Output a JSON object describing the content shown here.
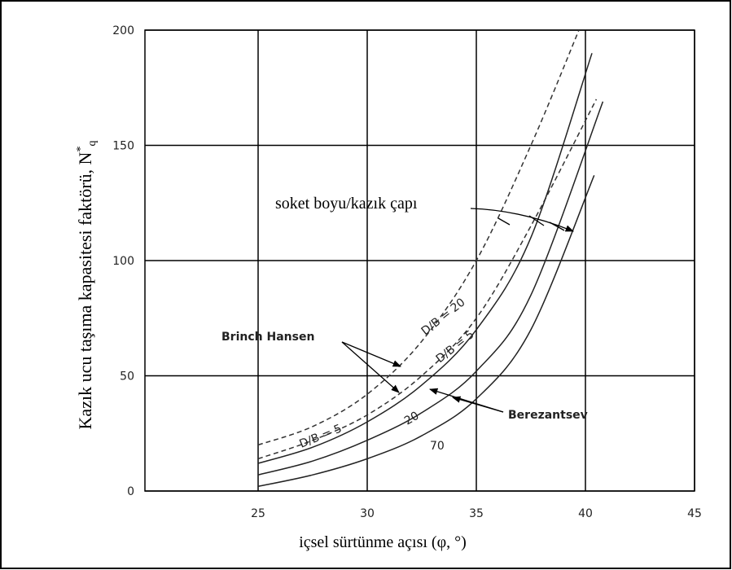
{
  "chart_data": {
    "type": "line",
    "xlabel": "içsel sürtünme açısı (φ, °)",
    "ylabel": "Kazık ucu taşıma kapasitesi faktörü, N",
    "ylabel_sup": "*",
    "ylabel_sub": "q",
    "xlim": [
      20,
      45
    ],
    "xticks": [
      25,
      30,
      35,
      40,
      45
    ],
    "ylim": [
      0,
      200
    ],
    "yticks": [
      0,
      50,
      100,
      150,
      200
    ],
    "grid": true,
    "series": [
      {
        "color": "#333333",
        "dash": true,
        "x": [
          25,
          27.5,
          30,
          32.5,
          35,
          37.5,
          39.7
        ],
        "values": [
          20,
          28,
          42,
          65,
          100,
          150,
          200
        ]
      },
      {
        "color": "#333333",
        "dash": true,
        "x": [
          25,
          27.5,
          30,
          32.5,
          35,
          37.5,
          40.5
        ],
        "values": [
          14,
          22,
          33,
          50,
          75,
          115,
          170
        ]
      },
      {
        "color": "#222222",
        "dash": false,
        "x": [
          25,
          27.5,
          30,
          32.5,
          35,
          37.5,
          40.3
        ],
        "values": [
          12,
          19,
          30,
          46,
          70,
          110,
          190
        ]
      },
      {
        "color": "#222222",
        "dash": false,
        "x": [
          25,
          27.5,
          30,
          32.5,
          35,
          37.5,
          40.8
        ],
        "values": [
          7,
          13,
          22,
          34,
          52,
          85,
          169
        ]
      },
      {
        "color": "#222222",
        "dash": false,
        "x": [
          25,
          27.5,
          30,
          32.5,
          35,
          37.5,
          40.4
        ],
        "values": [
          2,
          7,
          14,
          24,
          40,
          70,
          137
        ]
      }
    ],
    "annotations": [
      "soket boyu/kazık çapı",
      "Brinch Hansen",
      "Berezantsev",
      "D/B = 20",
      "D/B = 5",
      "D/B = 5",
      "20",
      "70"
    ]
  }
}
